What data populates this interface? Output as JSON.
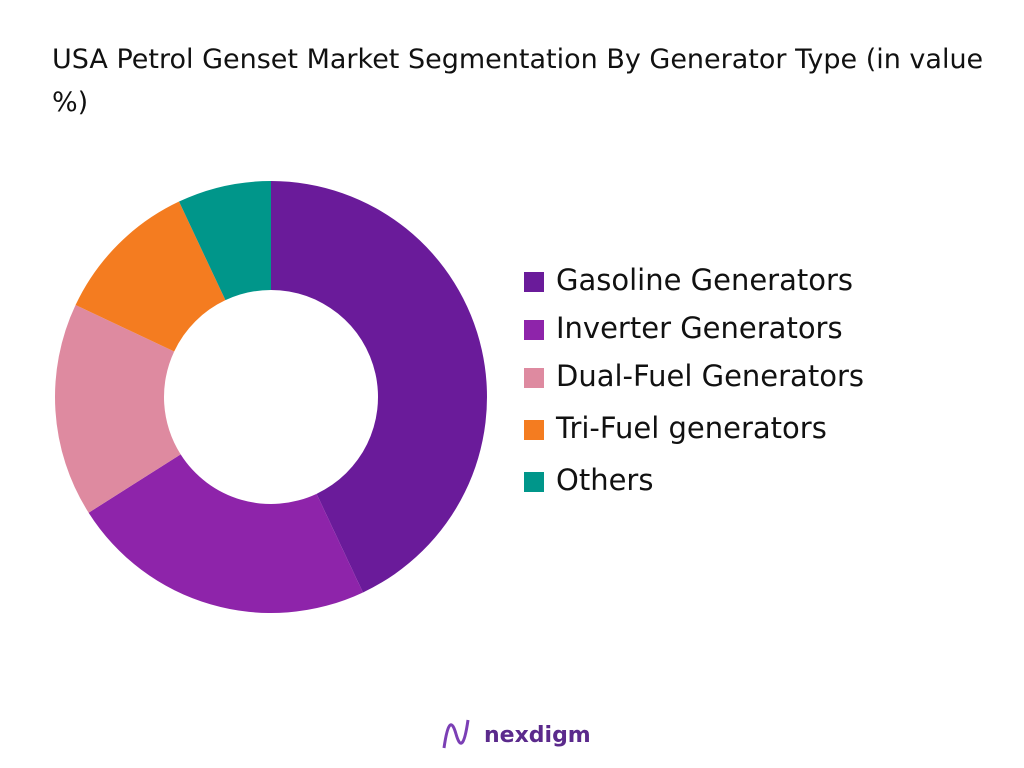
{
  "chart_data": {
    "type": "pie",
    "title": "USA Petrol Genset Market  Segmentation By Generator Type (in value %)",
    "categories": [
      "Gasoline Generators",
      "Inverter Generators",
      "Dual-Fuel Generators",
      "Tri-Fuel generators",
      "Others"
    ],
    "values": [
      43,
      23,
      16,
      11,
      7
    ],
    "colors": [
      "#6a1b9a",
      "#8e24aa",
      "#de8aa0",
      "#f47c20",
      "#00968a"
    ],
    "legend": "right"
  },
  "brand": "nexdigm"
}
